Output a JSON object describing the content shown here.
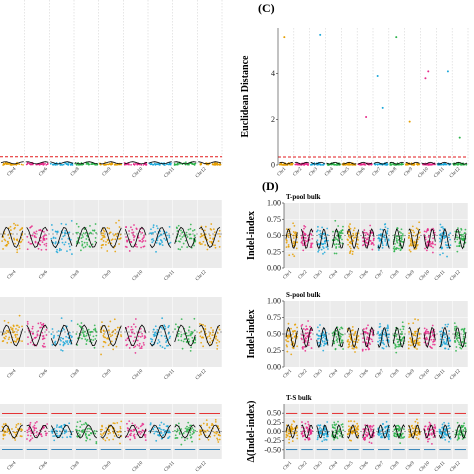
{
  "colors": {
    "orange": "#E69F00",
    "pink": "#E7298A",
    "cyan": "#1AA7D9",
    "green": "#2BB34A",
    "threshold": "#E31A1C",
    "trend": "#000000",
    "grid_bg": "#EBEBEB",
    "upper_ci": "#E31A1C",
    "lower_ci": "#1F78B4"
  },
  "chromosomes": [
    "Chr1",
    "Chr2",
    "Chr3",
    "Chr4",
    "Chr5",
    "Chr6",
    "Chr7",
    "Chr8",
    "Chr9",
    "Chr10",
    "Chr11",
    "Chr12"
  ],
  "chart_data": [
    {
      "id": "left-top",
      "type": "scatter",
      "title": "",
      "panel_letter": "",
      "ylabel": "",
      "threshold": 0.3,
      "xtick_labels": [
        "Chr4",
        "Chr6",
        "Chr8",
        "Chr9",
        "Chr10",
        "Chr11",
        "Chr12"
      ]
    },
    {
      "id": "C",
      "type": "scatter",
      "title": "",
      "panel_letter": "(C)",
      "ylabel": "Euclidean Distance",
      "ylim": [
        0,
        6
      ],
      "yticks": [
        "0",
        "2",
        "4"
      ],
      "threshold": 0.35,
      "xtick_labels": [
        "Chr1",
        "Chr2",
        "Chr3",
        "Chr4",
        "Chr5",
        "Chr6",
        "Chr7",
        "Chr8",
        "Chr9",
        "Chr10",
        "Chr11",
        "Chr12"
      ],
      "outliers": [
        {
          "chr": 1,
          "y": 5.6
        },
        {
          "chr": 3,
          "y": 5.7
        },
        {
          "chr": 6,
          "y": 2.1
        },
        {
          "chr": 7,
          "y": 2.5
        },
        {
          "chr": 7,
          "y": 3.9
        },
        {
          "chr": 8,
          "y": 5.6
        },
        {
          "chr": 9,
          "y": 1.9
        },
        {
          "chr": 10,
          "y": 3.8
        },
        {
          "chr": 10,
          "y": 4.1
        },
        {
          "chr": 11,
          "y": 4.1
        },
        {
          "chr": 12,
          "y": 1.2
        }
      ]
    },
    {
      "id": "left-mid1",
      "type": "scatter",
      "title": "",
      "panel_letter": "",
      "ylabel": "",
      "xtick_labels": [
        "Chr4",
        "Chr6",
        "Chr8",
        "Chr9",
        "Chr10",
        "Chr11",
        "Chr12"
      ]
    },
    {
      "id": "D-T",
      "type": "scatter",
      "title": "T-pool bulk",
      "panel_letter": "(D)",
      "ylabel": "Indel-index",
      "ylim": [
        0,
        1
      ],
      "yticks": [
        "0.00",
        "0.25",
        "0.50",
        "0.75",
        "1.00"
      ],
      "xtick_labels": [
        "Chr1",
        "Chr2",
        "Chr3",
        "Chr4",
        "Chr5",
        "Chr6",
        "Chr7",
        "Chr8",
        "Chr9",
        "Chr10",
        "Chr11",
        "Chr12"
      ]
    },
    {
      "id": "left-mid2",
      "type": "scatter",
      "title": "",
      "panel_letter": "",
      "ylabel": "",
      "xtick_labels": [
        "Chr4",
        "Chr6",
        "Chr8",
        "Chr9",
        "Chr10",
        "Chr11",
        "Chr12"
      ]
    },
    {
      "id": "D-S",
      "type": "scatter",
      "title": "S-pool bulk",
      "panel_letter": "",
      "ylabel": "Indel-index",
      "ylim": [
        0,
        1
      ],
      "yticks": [
        "0.00",
        "0.25",
        "0.50",
        "0.75",
        "1.00"
      ],
      "xtick_labels": [
        "Chr1",
        "Chr2",
        "Chr3",
        "Chr4",
        "Chr5",
        "Chr6",
        "Chr7",
        "Chr8",
        "Chr9",
        "Chr10",
        "Chr11",
        "Chr12"
      ]
    },
    {
      "id": "left-bottom",
      "type": "scatter",
      "title": "",
      "panel_letter": "",
      "ylabel": "",
      "xtick_labels": [
        "Chr4",
        "Chr6",
        "Chr8",
        "Chr9",
        "Chr10",
        "Chr11",
        "Chr12"
      ]
    },
    {
      "id": "D-TS",
      "type": "scatter",
      "title": "T-S bulk",
      "panel_letter": "",
      "ylabel": "Δ(Indel-index)",
      "ylim": [
        -0.75,
        0.75
      ],
      "yticks": [
        "0.50",
        "0.25",
        "0.00",
        "-0.25",
        "-0.50"
      ],
      "xtick_labels": [
        "Chr1",
        "Chr2",
        "Chr3",
        "Chr4",
        "Chr5",
        "Chr6",
        "Chr7",
        "Chr8",
        "Chr9",
        "Chr10",
        "Chr11",
        "Chr12"
      ]
    }
  ]
}
